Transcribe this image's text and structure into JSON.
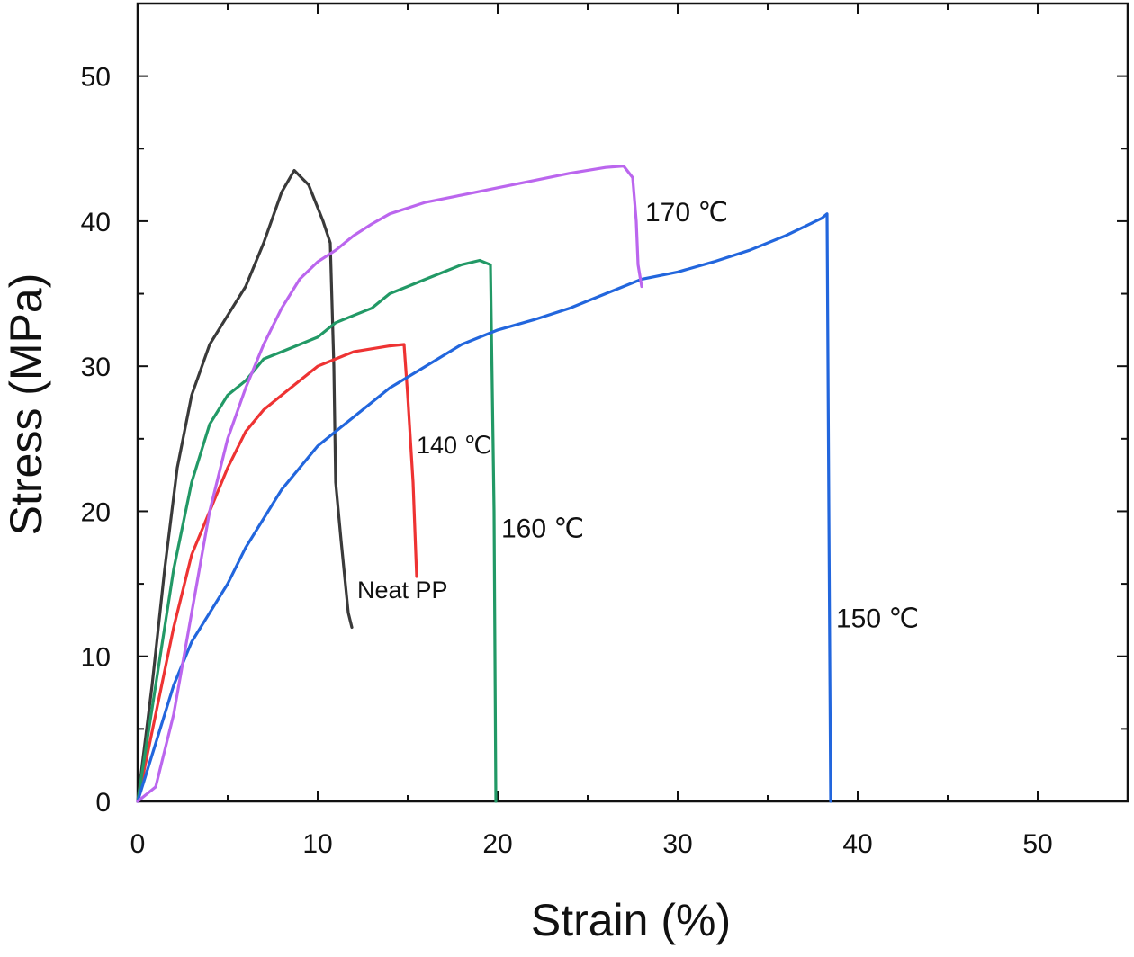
{
  "chart_data": {
    "type": "line",
    "title": "",
    "xlabel": "Strain (%)",
    "ylabel": "Stress (MPa)",
    "xlim": [
      0,
      55
    ],
    "ylim": [
      0,
      55
    ],
    "x_ticks": [
      "0",
      "10",
      "20",
      "30",
      "40",
      "50"
    ],
    "y_ticks": [
      "0",
      "10",
      "20",
      "30",
      "40",
      "50"
    ],
    "grid": false,
    "legend": "none (series labelled directly on plot)",
    "series": [
      {
        "name": "Neat PP",
        "color": "#3a3a3a",
        "points": [
          [
            0,
            0
          ],
          [
            0.8,
            8
          ],
          [
            1.5,
            16
          ],
          [
            2.2,
            23
          ],
          [
            3,
            28
          ],
          [
            4,
            31.5
          ],
          [
            5,
            33.5
          ],
          [
            6,
            35.5
          ],
          [
            7,
            38.5
          ],
          [
            8,
            42
          ],
          [
            8.7,
            43.5
          ],
          [
            9.5,
            42.5
          ],
          [
            10.3,
            40
          ],
          [
            10.7,
            38.5
          ],
          [
            10.9,
            30
          ],
          [
            11,
            22
          ],
          [
            11.3,
            18
          ],
          [
            11.7,
            13
          ],
          [
            11.9,
            12
          ]
        ]
      },
      {
        "name": "140 ℃",
        "color": "#ee3333",
        "points": [
          [
            0,
            0
          ],
          [
            1,
            6
          ],
          [
            2,
            12
          ],
          [
            3,
            17
          ],
          [
            4,
            20
          ],
          [
            5,
            23
          ],
          [
            6,
            25.5
          ],
          [
            7,
            27
          ],
          [
            8,
            28
          ],
          [
            9,
            29
          ],
          [
            10,
            30
          ],
          [
            11,
            30.5
          ],
          [
            12,
            31
          ],
          [
            13,
            31.2
          ],
          [
            14,
            31.4
          ],
          [
            14.8,
            31.5
          ],
          [
            15,
            28
          ],
          [
            15.3,
            22
          ],
          [
            15.5,
            15.5
          ]
        ]
      },
      {
        "name": "160 ℃",
        "color": "#229966",
        "points": [
          [
            0,
            0
          ],
          [
            1,
            8
          ],
          [
            2,
            16
          ],
          [
            3,
            22
          ],
          [
            4,
            26
          ],
          [
            5,
            28
          ],
          [
            6,
            29
          ],
          [
            7,
            30.5
          ],
          [
            8,
            31
          ],
          [
            9,
            31.5
          ],
          [
            10,
            32
          ],
          [
            11,
            33
          ],
          [
            12,
            33.5
          ],
          [
            13,
            34
          ],
          [
            14,
            35
          ],
          [
            15,
            35.5
          ],
          [
            16,
            36
          ],
          [
            17,
            36.5
          ],
          [
            18,
            37
          ],
          [
            19,
            37.3
          ],
          [
            19.6,
            37
          ],
          [
            19.8,
            20
          ],
          [
            19.9,
            0
          ]
        ]
      },
      {
        "name": "150 ℃",
        "color": "#2266dd",
        "points": [
          [
            0,
            0
          ],
          [
            1,
            4
          ],
          [
            2,
            8
          ],
          [
            3,
            11
          ],
          [
            4,
            13
          ],
          [
            5,
            15
          ],
          [
            6,
            17.5
          ],
          [
            7,
            19.5
          ],
          [
            8,
            21.5
          ],
          [
            9,
            23
          ],
          [
            10,
            24.5
          ],
          [
            12,
            26.5
          ],
          [
            14,
            28.5
          ],
          [
            16,
            30
          ],
          [
            18,
            31.5
          ],
          [
            20,
            32.5
          ],
          [
            22,
            33.2
          ],
          [
            24,
            34
          ],
          [
            26,
            35
          ],
          [
            28,
            36
          ],
          [
            30,
            36.5
          ],
          [
            32,
            37.2
          ],
          [
            34,
            38
          ],
          [
            36,
            39
          ],
          [
            37,
            39.6
          ],
          [
            38,
            40.2
          ],
          [
            38.3,
            40.5
          ],
          [
            38.4,
            20
          ],
          [
            38.5,
            0
          ]
        ]
      },
      {
        "name": "170 ℃",
        "color": "#bb66ee",
        "points": [
          [
            0,
            0
          ],
          [
            1,
            1
          ],
          [
            2,
            6
          ],
          [
            3,
            13
          ],
          [
            4,
            20
          ],
          [
            5,
            25
          ],
          [
            6,
            28.5
          ],
          [
            7,
            31.5
          ],
          [
            8,
            34
          ],
          [
            9,
            36
          ],
          [
            10,
            37.2
          ],
          [
            11,
            38
          ],
          [
            12,
            39
          ],
          [
            13,
            39.8
          ],
          [
            14,
            40.5
          ],
          [
            16,
            41.3
          ],
          [
            18,
            41.8
          ],
          [
            20,
            42.3
          ],
          [
            22,
            42.8
          ],
          [
            24,
            43.3
          ],
          [
            26,
            43.7
          ],
          [
            27,
            43.8
          ],
          [
            27.5,
            43
          ],
          [
            27.7,
            40
          ],
          [
            27.8,
            37
          ],
          [
            28,
            35.5
          ]
        ]
      }
    ],
    "annotations": [
      {
        "series": "Neat PP",
        "text": "Neat PP",
        "x": 12.2,
        "y": 14.0,
        "size": "small"
      },
      {
        "series": "140 ℃",
        "text": "140 ℃",
        "x": 15.5,
        "y": 24.0,
        "size": "small"
      },
      {
        "series": "160 ℃",
        "text": "160 ℃",
        "x": 20.2,
        "y": 18.2,
        "size": "normal"
      },
      {
        "series": "150 ℃",
        "text": "150 ℃",
        "x": 38.8,
        "y": 12.0,
        "size": "normal"
      },
      {
        "series": "170 ℃",
        "text": "170 ℃",
        "x": 28.2,
        "y": 40.0,
        "size": "normal"
      }
    ]
  }
}
